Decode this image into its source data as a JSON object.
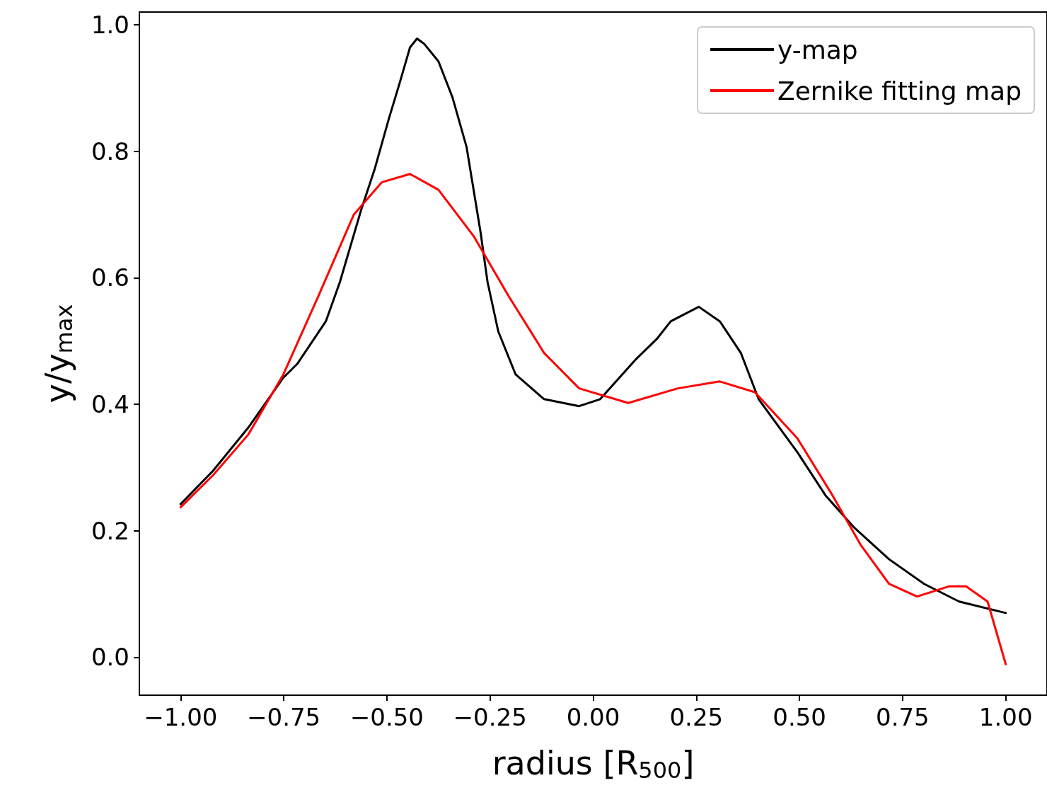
{
  "chart_data": {
    "type": "line",
    "xlabel": "radius [R$_{500}$]",
    "ylabel": "y/y$_{max}$",
    "legend": "top right",
    "grid": false,
    "marker": "none",
    "line_style": "solid",
    "xlim": [
      -1.1,
      1.1
    ],
    "ylim": [
      -0.06,
      1.02
    ],
    "xticks": [
      {
        "value": -1,
        "label": "−1.00"
      },
      {
        "value": -0.75,
        "label": "−0.75"
      },
      {
        "value": -0.5,
        "label": "−0.50"
      },
      {
        "value": -0.25,
        "label": "−0.25"
      },
      {
        "value": 0,
        "label": "0.00"
      },
      {
        "value": 0.25,
        "label": "0.25"
      },
      {
        "value": 0.5,
        "label": "0.50"
      },
      {
        "value": 0.75,
        "label": "0.75"
      },
      {
        "value": 1,
        "label": "1.00"
      }
    ],
    "yticks": [
      {
        "value": 0,
        "label": "0.0"
      },
      {
        "value": 0.2,
        "label": "0.2"
      },
      {
        "value": 0.4,
        "label": "0.4"
      },
      {
        "value": 0.6,
        "label": "0.6"
      },
      {
        "value": 0.8,
        "label": "0.8"
      },
      {
        "value": 1,
        "label": "1.0"
      }
    ],
    "series": [
      {
        "name": "y-map",
        "color": "#000000",
        "x": [
          -1.0,
          -0.921,
          -0.836,
          -0.751,
          -0.717,
          -0.648,
          -0.614,
          -0.563,
          -0.529,
          -0.495,
          -0.469,
          -0.444,
          -0.427,
          -0.41,
          -0.375,
          -0.341,
          -0.307,
          -0.273,
          -0.256,
          -0.23,
          -0.188,
          -0.119,
          -0.034,
          0.017,
          0.102,
          0.154,
          0.188,
          0.256,
          0.307,
          0.358,
          0.401,
          0.495,
          0.563,
          0.631,
          0.717,
          0.802,
          0.887,
          1.0
        ],
        "values": [
          0.242,
          0.295,
          0.363,
          0.442,
          0.464,
          0.531,
          0.593,
          0.706,
          0.773,
          0.852,
          0.908,
          0.964,
          0.978,
          0.97,
          0.942,
          0.885,
          0.807,
          0.672,
          0.593,
          0.515,
          0.447,
          0.408,
          0.397,
          0.408,
          0.47,
          0.503,
          0.531,
          0.554,
          0.531,
          0.481,
          0.408,
          0.324,
          0.256,
          0.206,
          0.155,
          0.116,
          0.088,
          0.07
        ]
      },
      {
        "name": "Zernike fitting map",
        "color": "#ff0000",
        "x": [
          -1.0,
          -0.921,
          -0.836,
          -0.751,
          -0.666,
          -0.58,
          -0.512,
          -0.444,
          -0.375,
          -0.29,
          -0.205,
          -0.119,
          -0.034,
          0.085,
          0.205,
          0.307,
          0.392,
          0.495,
          0.58,
          0.648,
          0.717,
          0.785,
          0.862,
          0.904,
          0.956,
          1.0
        ],
        "values": [
          0.237,
          0.288,
          0.352,
          0.447,
          0.571,
          0.7,
          0.751,
          0.764,
          0.739,
          0.666,
          0.571,
          0.481,
          0.425,
          0.402,
          0.425,
          0.436,
          0.419,
          0.346,
          0.256,
          0.178,
          0.116,
          0.096,
          0.112,
          0.112,
          0.088,
          -0.011
        ]
      }
    ]
  }
}
